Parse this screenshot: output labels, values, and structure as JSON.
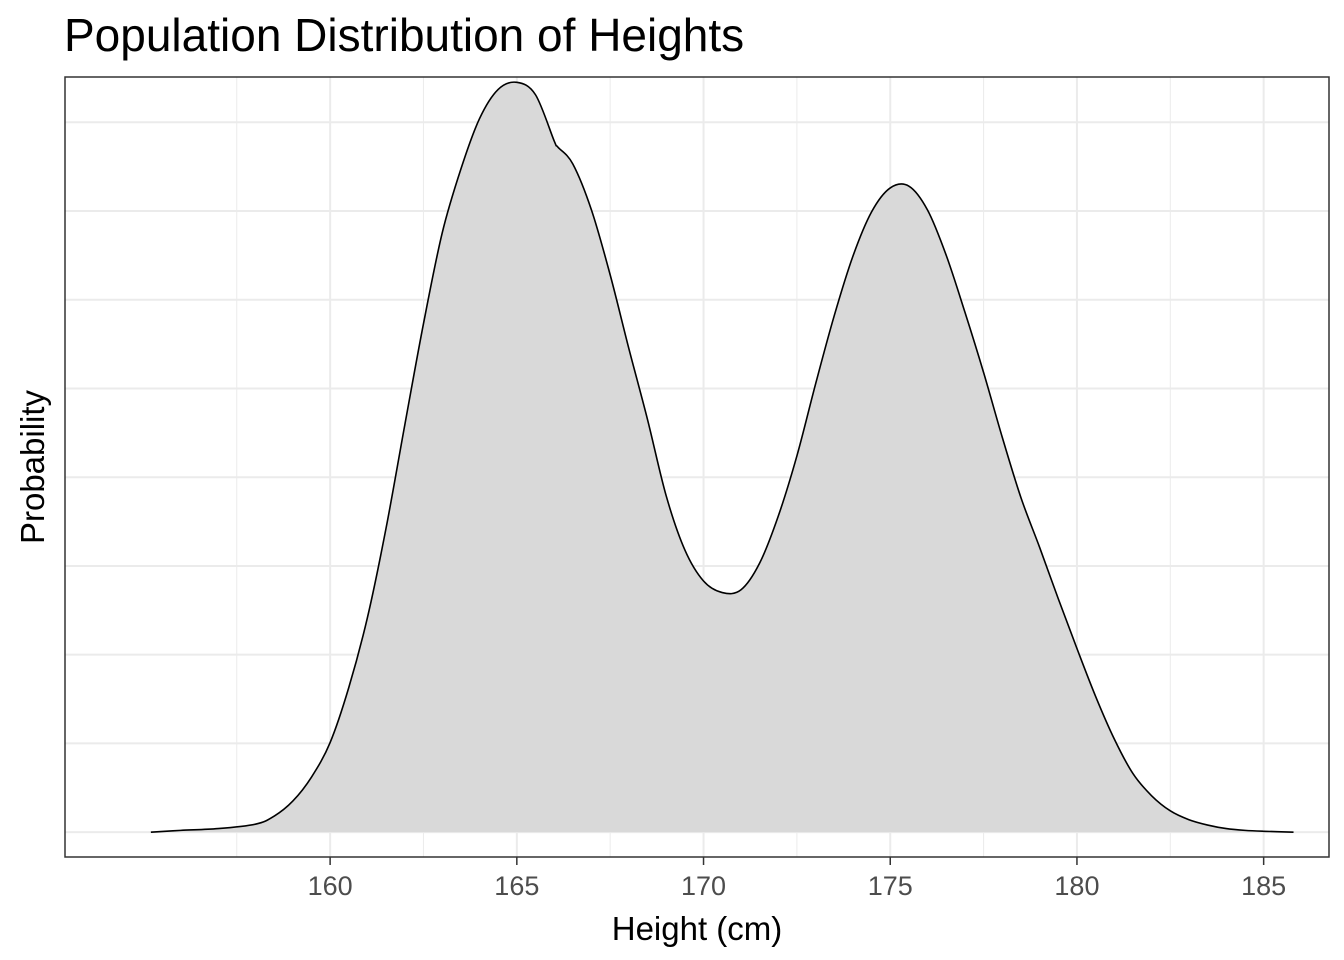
{
  "chart_data": {
    "type": "area",
    "title": "Population Distribution of Heights",
    "xlabel": "Height (cm)",
    "ylabel": "Probability",
    "xlim": [
      152.9,
      186.75
    ],
    "ylim": [
      -0.0028,
      0.0851
    ],
    "x_ticks": [
      160,
      165,
      170,
      175,
      180,
      185
    ],
    "x_tick_labels": [
      "160",
      "165",
      "170",
      "175",
      "180",
      "185"
    ],
    "y_ticks_unlabeled": [
      0,
      0.01,
      0.02,
      0.03,
      0.04,
      0.05,
      0.06,
      0.07,
      0.08
    ],
    "grid": true,
    "legend": "none",
    "series": [
      {
        "x": [
          155.2,
          156,
          157,
          158,
          158.5,
          159,
          159.5,
          160,
          160.5,
          161,
          161.5,
          162,
          162.5,
          163,
          163.5,
          164,
          164.5,
          165,
          165.5,
          166,
          166.1,
          166.5,
          167,
          167.5,
          168,
          168.5,
          169,
          169.5,
          170,
          170.5,
          171,
          171.5,
          172,
          172.5,
          173,
          173.5,
          174,
          174.5,
          175,
          175.5,
          176,
          176.5,
          177,
          177.5,
          178,
          178.5,
          179,
          179.5,
          180,
          180.5,
          181,
          181.5,
          182,
          182.5,
          183,
          183.5,
          184,
          184.5,
          185,
          185.8
        ],
        "y": [
          0.0,
          0.0002,
          0.0004,
          0.0009,
          0.0018,
          0.0035,
          0.0062,
          0.0101,
          0.0163,
          0.0242,
          0.0343,
          0.0459,
          0.0573,
          0.0675,
          0.0747,
          0.0804,
          0.0837,
          0.0845,
          0.0831,
          0.0779,
          0.0772,
          0.0753,
          0.0701,
          0.0628,
          0.0545,
          0.0465,
          0.0379,
          0.0318,
          0.0283,
          0.027,
          0.0273,
          0.0303,
          0.0356,
          0.0424,
          0.0505,
          0.0582,
          0.0649,
          0.0699,
          0.0726,
          0.0728,
          0.0701,
          0.065,
          0.0586,
          0.0518,
          0.0445,
          0.0377,
          0.0321,
          0.0263,
          0.0207,
          0.0153,
          0.0105,
          0.0066,
          0.0041,
          0.0024,
          0.0014,
          0.0008,
          0.0004,
          0.0002,
          0.0001,
          0.0
        ]
      }
    ],
    "colors": {
      "fill": "#d9d9d9",
      "line": "#000000",
      "grid": "#ebebeb",
      "panel_border": "#333333",
      "tick_label": "#4d4d4d"
    }
  }
}
